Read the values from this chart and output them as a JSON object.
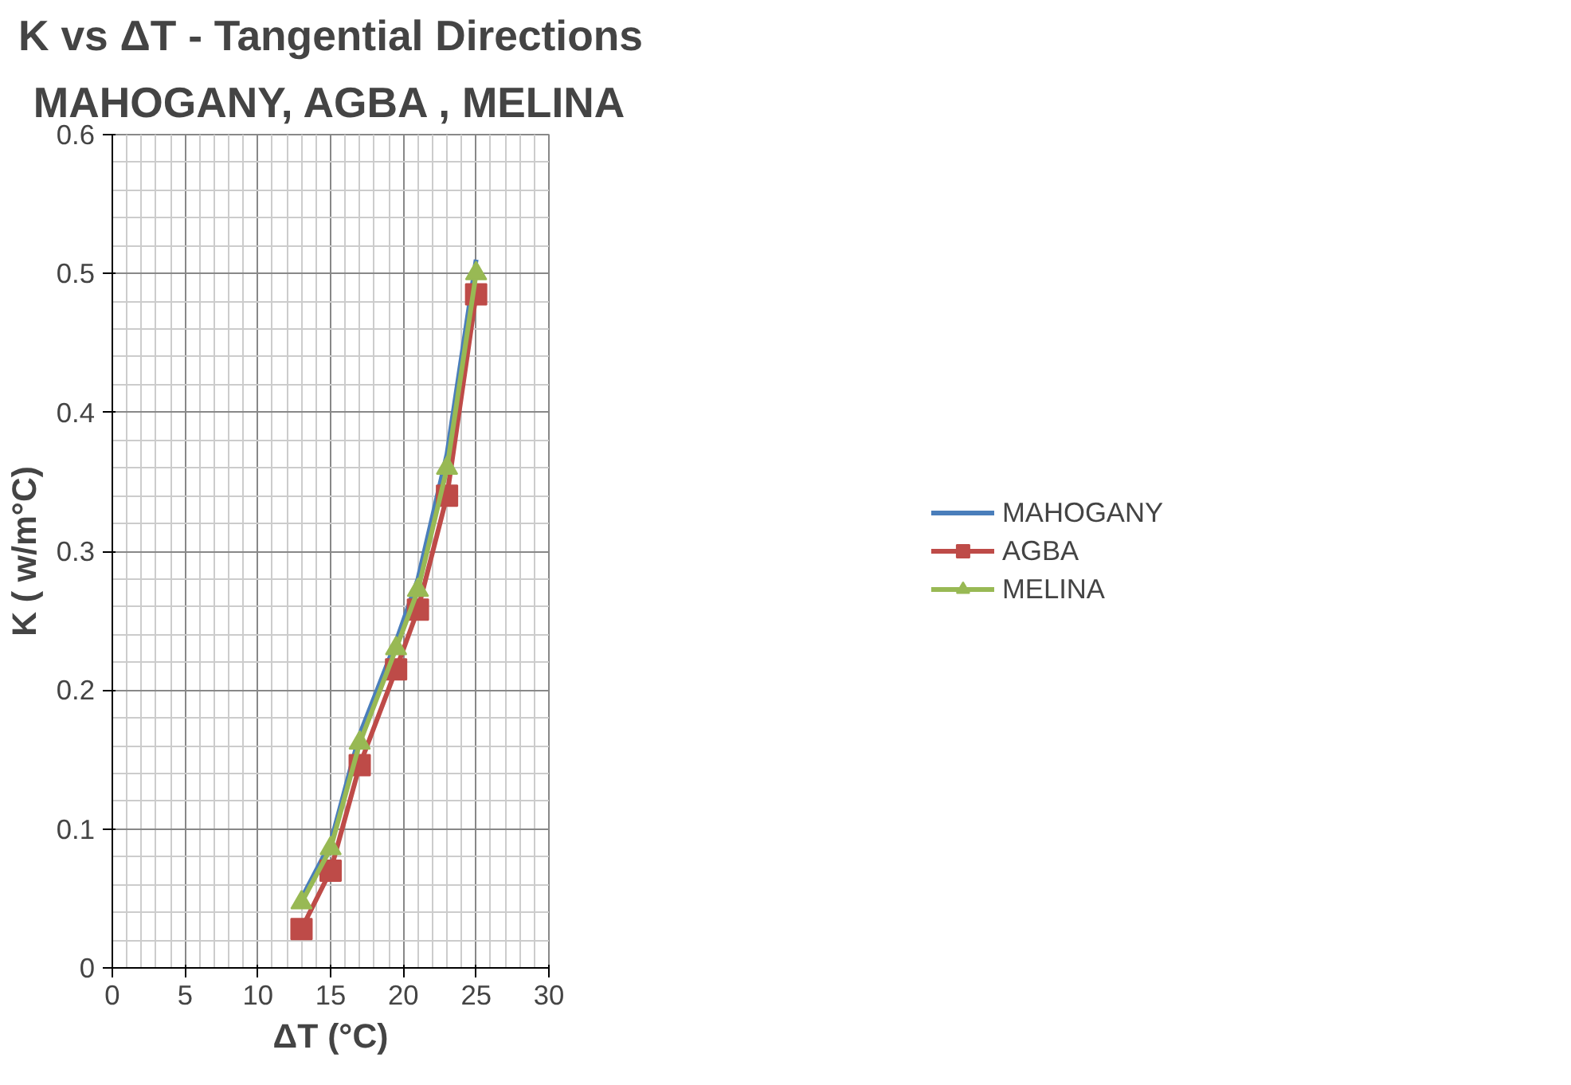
{
  "chart_data": {
    "type": "line",
    "title": "K vs ΔT - Tangential Directions",
    "subtitle": "MAHOGANY, AGBA , MELINA",
    "xlabel": "ΔT (°C)",
    "ylabel": "K ( w/m°C)",
    "x": [
      13,
      15,
      17,
      19.5,
      21,
      23,
      25
    ],
    "series": [
      {
        "name": "MAHOGANY",
        "color": "#4a7ebb",
        "marker": "none",
        "values": [
          0.05,
          0.09,
          0.168,
          0.235,
          0.28,
          0.37,
          0.51
        ]
      },
      {
        "name": "AGBA",
        "color": "#be4b48",
        "marker": "square",
        "values": [
          0.028,
          0.07,
          0.146,
          0.215,
          0.258,
          0.34,
          0.485
        ]
      },
      {
        "name": "MELINA",
        "color": "#98b954",
        "marker": "triangle",
        "values": [
          0.047,
          0.086,
          0.162,
          0.23,
          0.272,
          0.36,
          0.5
        ]
      }
    ],
    "xlim": [
      0,
      30
    ],
    "xticks": [
      0,
      5,
      10,
      15,
      20,
      25,
      30
    ],
    "ylim": [
      0,
      0.6
    ],
    "yticks": [
      0,
      0.1,
      0.2,
      0.3,
      0.4,
      0.5,
      0.6
    ],
    "grid": true,
    "legend": "right",
    "line_style": "solid"
  }
}
